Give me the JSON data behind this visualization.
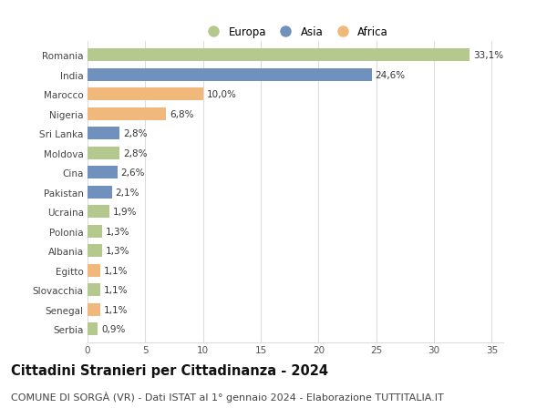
{
  "countries": [
    "Romania",
    "India",
    "Marocco",
    "Nigeria",
    "Sri Lanka",
    "Moldova",
    "Cina",
    "Pakistan",
    "Ucraina",
    "Polonia",
    "Albania",
    "Egitto",
    "Slovacchia",
    "Senegal",
    "Serbia"
  ],
  "values": [
    33.1,
    24.6,
    10.0,
    6.8,
    2.8,
    2.8,
    2.6,
    2.1,
    1.9,
    1.3,
    1.3,
    1.1,
    1.1,
    1.1,
    0.9
  ],
  "labels": [
    "33,1%",
    "24,6%",
    "10,0%",
    "6,8%",
    "2,8%",
    "2,8%",
    "2,6%",
    "2,1%",
    "1,9%",
    "1,3%",
    "1,3%",
    "1,1%",
    "1,1%",
    "1,1%",
    "0,9%"
  ],
  "continents": [
    "Europa",
    "Asia",
    "Africa",
    "Africa",
    "Asia",
    "Europa",
    "Asia",
    "Asia",
    "Europa",
    "Europa",
    "Europa",
    "Africa",
    "Europa",
    "Africa",
    "Europa"
  ],
  "colors": {
    "Europa": "#b5c98e",
    "Asia": "#7090be",
    "Africa": "#f0b87a"
  },
  "legend_labels": [
    "Europa",
    "Asia",
    "Africa"
  ],
  "xlim": [
    0,
    36
  ],
  "xticks": [
    0,
    5,
    10,
    15,
    20,
    25,
    30,
    35
  ],
  "title": "Cittadini Stranieri per Cittadinanza - 2024",
  "subtitle": "COMUNE DI SORGÀ (VR) - Dati ISTAT al 1° gennaio 2024 - Elaborazione TUTTITALIA.IT",
  "bg_color": "#ffffff",
  "grid_color": "#dddddd",
  "bar_height": 0.65,
  "title_fontsize": 10.5,
  "subtitle_fontsize": 8,
  "label_fontsize": 7.5,
  "tick_fontsize": 7.5,
  "legend_fontsize": 8.5
}
